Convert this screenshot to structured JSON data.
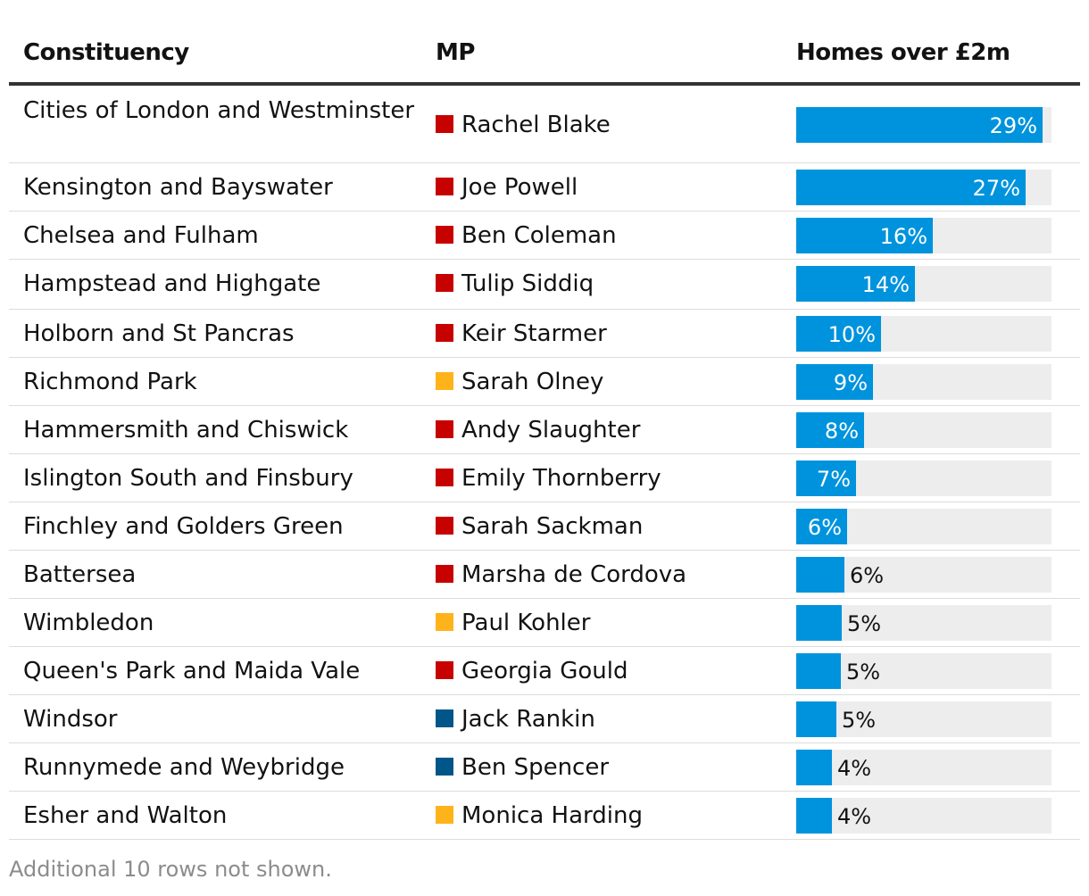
{
  "chart_data": {
    "type": "table",
    "columns": [
      "Constituency",
      "MP",
      "Homes over £2m"
    ],
    "rows": [
      {
        "constituency": "Cities of London and Westminster",
        "mp": "Rachel Blake",
        "party": "Labour",
        "value": 29,
        "label": "29%"
      },
      {
        "constituency": "Kensington and Bayswater",
        "mp": "Joe Powell",
        "party": "Labour",
        "value": 27,
        "label": "27%"
      },
      {
        "constituency": "Chelsea and Fulham",
        "mp": "Ben Coleman",
        "party": "Labour",
        "value": 16,
        "label": "16%"
      },
      {
        "constituency": "Hampstead and Highgate",
        "mp": "Tulip Siddiq",
        "party": "Labour",
        "value": 14,
        "label": "14%"
      },
      {
        "constituency": "Holborn and St Pancras",
        "mp": "Keir Starmer",
        "party": "Labour",
        "value": 10,
        "label": "10%"
      },
      {
        "constituency": "Richmond Park",
        "mp": "Sarah Olney",
        "party": "Liberal Democrat",
        "value": 9,
        "label": "9%"
      },
      {
        "constituency": "Hammersmith and Chiswick",
        "mp": "Andy Slaughter",
        "party": "Labour",
        "value": 8,
        "label": "8%"
      },
      {
        "constituency": "Islington South and Finsbury",
        "mp": "Emily Thornberry",
        "party": "Labour",
        "value": 7,
        "label": "7%"
      },
      {
        "constituency": "Finchley and Golders Green",
        "mp": "Sarah Sackman",
        "party": "Labour",
        "value": 6,
        "label": "6%"
      },
      {
        "constituency": "Battersea",
        "mp": "Marsha de Cordova",
        "party": "Labour",
        "value": 5.7,
        "label": "6%"
      },
      {
        "constituency": "Wimbledon",
        "mp": "Paul Kohler",
        "party": "Liberal Democrat",
        "value": 5.3,
        "label": "5%"
      },
      {
        "constituency": "Queen's Park and Maida Vale",
        "mp": "Georgia Gould",
        "party": "Labour",
        "value": 5.2,
        "label": "5%"
      },
      {
        "constituency": "Windsor",
        "mp": "Jack Rankin",
        "party": "Conservative",
        "value": 4.7,
        "label": "5%"
      },
      {
        "constituency": "Runnymede and Weybridge",
        "mp": "Ben Spencer",
        "party": "Conservative",
        "value": 4.2,
        "label": "4%"
      },
      {
        "constituency": "Esher and Walton",
        "mp": "Monica Harding",
        "party": "Liberal Democrat",
        "value": 4.2,
        "label": "4%"
      }
    ],
    "bar_max": 30,
    "bar_color": "#0093dd",
    "track_color": "#ededed",
    "party_colors": {
      "Labour": "#c70000",
      "Liberal Democrat": "#ffb31a",
      "Conservative": "#005589"
    }
  },
  "footnote": "Additional 10 rows not shown."
}
